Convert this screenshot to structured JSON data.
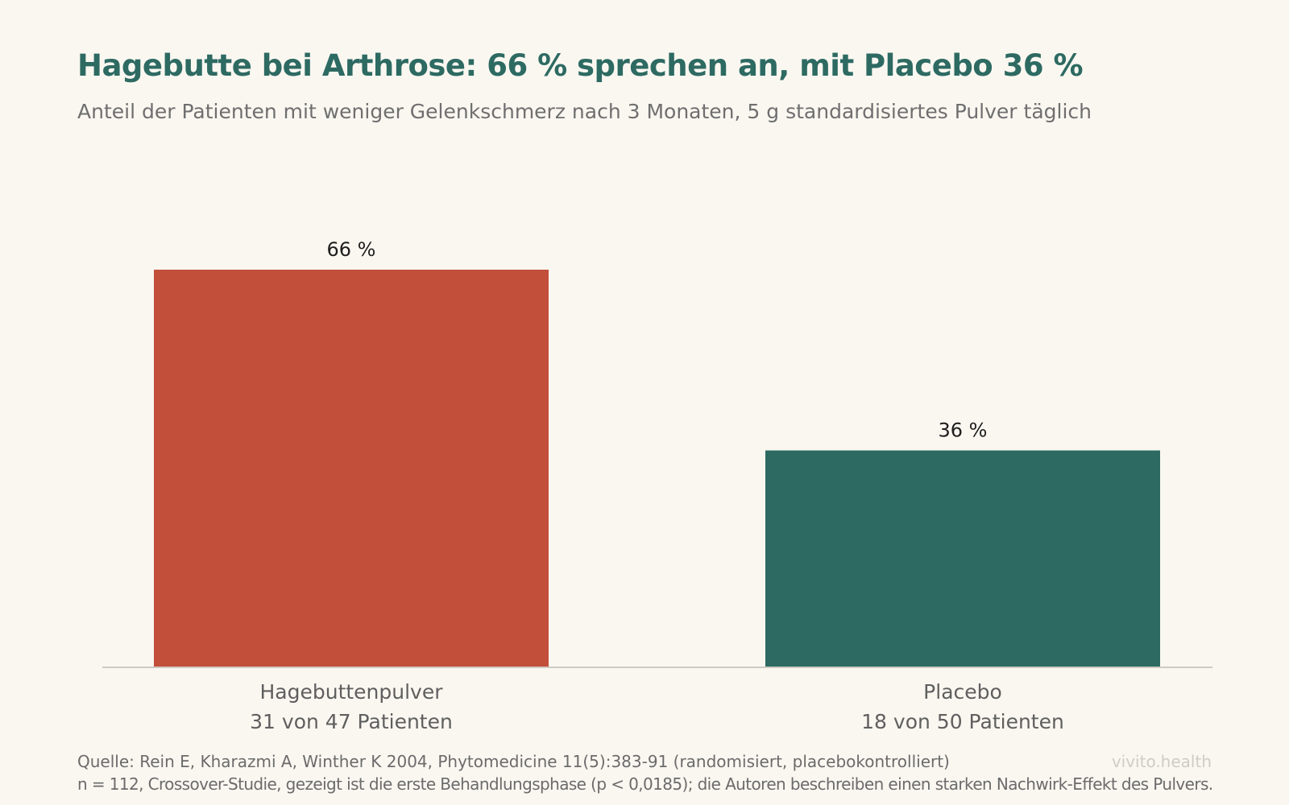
{
  "header": {
    "title": "Hagebutte bei Arthrose: 66 % sprechen an, mit Placebo 36 %",
    "subtitle": "Anteil der Patienten mit weniger Gelenkschmerz nach 3 Monaten, 5 g standardisiertes Pulver täglich"
  },
  "chart_data": {
    "type": "bar",
    "title": "Hagebutte bei Arthrose: 66 % sprechen an, mit Placebo 36 %",
    "subtitle": "Anteil der Patienten mit weniger Gelenkschmerz nach 3 Monaten, 5 g standardisiertes Pulver täglich",
    "categories": [
      "Hagebuttenpulver",
      "Placebo"
    ],
    "category_sublabels": [
      "31 von 47 Patienten",
      "18 von 50 Patienten"
    ],
    "values": [
      66,
      36
    ],
    "value_labels": [
      "66 %",
      "36 %"
    ],
    "colors": [
      "#c24f3a",
      "#2d6a62"
    ],
    "xlabel": "",
    "ylabel": "",
    "ylim": [
      0,
      66
    ],
    "grid": false,
    "legend": "none"
  },
  "footer": {
    "source": "Quelle: Rein E, Kharazmi A, Winther K 2004, Phytomedicine 11(5):383-91 (randomisiert, placebokontrolliert)",
    "note": "n = 112, Crossover-Studie, gezeigt ist die erste Behandlungsphase (p < 0,0185); die Autoren beschreiben einen starken Nachwirk-Effekt des Pulvers.",
    "brand": "vivito.health"
  }
}
